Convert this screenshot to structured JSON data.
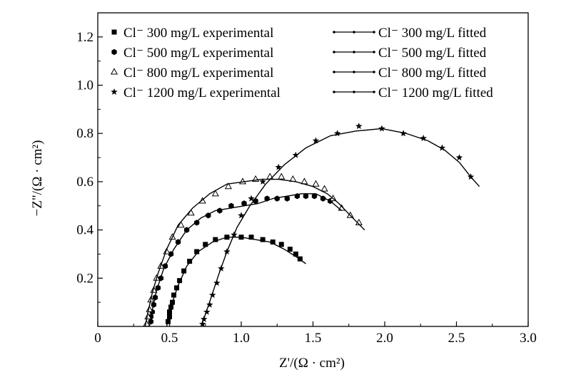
{
  "chart_data": {
    "type": "scatter",
    "xlabel": "Z'/(Ω · cm²)",
    "ylabel": "−Z\"/(Ω · cm²)",
    "xlim": [
      0,
      3.0
    ],
    "ylim": [
      0,
      1.3
    ],
    "xticks": [
      {
        "value": 0,
        "label": "0"
      },
      {
        "value": 0.5,
        "label": "0.5"
      },
      {
        "value": 1.0,
        "label": "1.0"
      },
      {
        "value": 1.5,
        "label": "1.5"
      },
      {
        "value": 2.0,
        "label": "2.0"
      },
      {
        "value": 2.5,
        "label": "2.5"
      },
      {
        "value": 3.0,
        "label": "3.0"
      }
    ],
    "yticks": [
      {
        "value": 0.2,
        "label": "0.2"
      },
      {
        "value": 0.4,
        "label": "0.4"
      },
      {
        "value": 0.6,
        "label": "0.6"
      },
      {
        "value": 0.8,
        "label": "0.8"
      },
      {
        "value": 1.0,
        "label": "1.0"
      },
      {
        "value": 1.2,
        "label": "1.2"
      }
    ],
    "grid": false,
    "legend_position": "top",
    "series": [
      {
        "name": "Cl⁻ 300 mg/L experimental",
        "marker": "square",
        "points": [
          [
            0.49,
            0.02
          ],
          [
            0.5,
            0.04
          ],
          [
            0.5,
            0.06
          ],
          [
            0.51,
            0.08
          ],
          [
            0.52,
            0.1
          ],
          [
            0.53,
            0.13
          ],
          [
            0.55,
            0.16
          ],
          [
            0.57,
            0.19
          ],
          [
            0.6,
            0.23
          ],
          [
            0.64,
            0.27
          ],
          [
            0.69,
            0.31
          ],
          [
            0.75,
            0.34
          ],
          [
            0.82,
            0.36
          ],
          [
            0.9,
            0.37
          ],
          [
            1.0,
            0.37
          ],
          [
            1.07,
            0.37
          ],
          [
            1.15,
            0.36
          ],
          [
            1.22,
            0.35
          ],
          [
            1.28,
            0.34
          ],
          [
            1.34,
            0.32
          ],
          [
            1.38,
            0.3
          ],
          [
            1.41,
            0.28
          ]
        ]
      },
      {
        "name": "Cl⁻ 500 mg/L experimental",
        "marker": "hexagon",
        "points": [
          [
            0.37,
            0.02
          ],
          [
            0.37,
            0.04
          ],
          [
            0.38,
            0.06
          ],
          [
            0.39,
            0.09
          ],
          [
            0.4,
            0.12
          ],
          [
            0.42,
            0.16
          ],
          [
            0.44,
            0.2
          ],
          [
            0.47,
            0.25
          ],
          [
            0.51,
            0.3
          ],
          [
            0.56,
            0.35
          ],
          [
            0.62,
            0.4
          ],
          [
            0.69,
            0.43
          ],
          [
            0.77,
            0.46
          ],
          [
            0.85,
            0.48
          ],
          [
            0.93,
            0.5
          ],
          [
            1.02,
            0.51
          ],
          [
            1.1,
            0.52
          ],
          [
            1.18,
            0.53
          ],
          [
            1.25,
            0.53
          ],
          [
            1.32,
            0.53
          ],
          [
            1.39,
            0.54
          ],
          [
            1.45,
            0.54
          ],
          [
            1.51,
            0.54
          ],
          [
            1.57,
            0.53
          ],
          [
            1.62,
            0.52
          ]
        ]
      },
      {
        "name": "Cl⁻ 800 mg/L experimental",
        "marker": "triangle",
        "points": [
          [
            0.34,
            0.01
          ],
          [
            0.35,
            0.04
          ],
          [
            0.36,
            0.07
          ],
          [
            0.37,
            0.11
          ],
          [
            0.39,
            0.15
          ],
          [
            0.41,
            0.2
          ],
          [
            0.44,
            0.25
          ],
          [
            0.48,
            0.31
          ],
          [
            0.52,
            0.37
          ],
          [
            0.58,
            0.42
          ],
          [
            0.65,
            0.47
          ],
          [
            0.73,
            0.52
          ],
          [
            0.82,
            0.55
          ],
          [
            0.91,
            0.58
          ],
          [
            1.01,
            0.6
          ],
          [
            1.1,
            0.61
          ],
          [
            1.2,
            0.62
          ],
          [
            1.28,
            0.62
          ],
          [
            1.36,
            0.61
          ],
          [
            1.44,
            0.6
          ],
          [
            1.52,
            0.59
          ],
          [
            1.58,
            0.57
          ],
          [
            1.64,
            0.53
          ],
          [
            1.7,
            0.49
          ],
          [
            1.76,
            0.46
          ],
          [
            1.82,
            0.43
          ]
        ]
      },
      {
        "name": "Cl⁻ 1200 mg/L experimental",
        "marker": "star",
        "points": [
          [
            0.73,
            0.01
          ],
          [
            0.74,
            0.03
          ],
          [
            0.76,
            0.06
          ],
          [
            0.78,
            0.09
          ],
          [
            0.8,
            0.13
          ],
          [
            0.83,
            0.18
          ],
          [
            0.86,
            0.24
          ],
          [
            0.9,
            0.31
          ],
          [
            0.95,
            0.38
          ],
          [
            1.0,
            0.46
          ],
          [
            1.07,
            0.53
          ],
          [
            1.15,
            0.6
          ],
          [
            1.26,
            0.66
          ],
          [
            1.38,
            0.71
          ],
          [
            1.52,
            0.77
          ],
          [
            1.67,
            0.8
          ],
          [
            1.82,
            0.83
          ],
          [
            1.98,
            0.82
          ],
          [
            2.13,
            0.8
          ],
          [
            2.27,
            0.78
          ],
          [
            2.4,
            0.74
          ],
          [
            2.52,
            0.7
          ],
          [
            2.6,
            0.62
          ]
        ]
      },
      {
        "name": "Cl⁻ 300 mg/L fitted",
        "marker": "line",
        "points": [
          [
            0.48,
            0.0
          ],
          [
            0.5,
            0.05
          ],
          [
            0.52,
            0.1
          ],
          [
            0.56,
            0.17
          ],
          [
            0.62,
            0.25
          ],
          [
            0.7,
            0.31
          ],
          [
            0.8,
            0.35
          ],
          [
            0.9,
            0.37
          ],
          [
            1.0,
            0.37
          ],
          [
            1.1,
            0.36
          ],
          [
            1.2,
            0.35
          ],
          [
            1.3,
            0.32
          ],
          [
            1.38,
            0.29
          ],
          [
            1.45,
            0.26
          ]
        ]
      },
      {
        "name": "Cl⁻ 500 mg/L fitted",
        "marker": "line",
        "points": [
          [
            0.36,
            0.0
          ],
          [
            0.38,
            0.07
          ],
          [
            0.41,
            0.15
          ],
          [
            0.46,
            0.24
          ],
          [
            0.53,
            0.32
          ],
          [
            0.62,
            0.4
          ],
          [
            0.72,
            0.45
          ],
          [
            0.82,
            0.48
          ],
          [
            0.92,
            0.49
          ],
          [
            1.02,
            0.5
          ],
          [
            1.12,
            0.51
          ],
          [
            1.22,
            0.53
          ],
          [
            1.32,
            0.54
          ],
          [
            1.42,
            0.55
          ],
          [
            1.52,
            0.55
          ],
          [
            1.62,
            0.52
          ],
          [
            1.7,
            0.48
          ]
        ]
      },
      {
        "name": "Cl⁻ 800 mg/L fitted",
        "marker": "line",
        "points": [
          [
            0.33,
            0.0
          ],
          [
            0.35,
            0.06
          ],
          [
            0.38,
            0.14
          ],
          [
            0.42,
            0.22
          ],
          [
            0.48,
            0.32
          ],
          [
            0.56,
            0.42
          ],
          [
            0.66,
            0.49
          ],
          [
            0.78,
            0.55
          ],
          [
            0.9,
            0.59
          ],
          [
            1.02,
            0.6
          ],
          [
            1.14,
            0.61
          ],
          [
            1.26,
            0.61
          ],
          [
            1.38,
            0.6
          ],
          [
            1.5,
            0.58
          ],
          [
            1.6,
            0.55
          ],
          [
            1.68,
            0.51
          ],
          [
            1.76,
            0.46
          ],
          [
            1.86,
            0.4
          ]
        ]
      },
      {
        "name": "Cl⁻ 1200 mg/L fitted",
        "marker": "line",
        "points": [
          [
            0.72,
            0.0
          ],
          [
            0.75,
            0.05
          ],
          [
            0.79,
            0.12
          ],
          [
            0.84,
            0.21
          ],
          [
            0.9,
            0.31
          ],
          [
            0.97,
            0.41
          ],
          [
            1.06,
            0.5
          ],
          [
            1.17,
            0.59
          ],
          [
            1.3,
            0.67
          ],
          [
            1.45,
            0.74
          ],
          [
            1.62,
            0.79
          ],
          [
            1.8,
            0.81
          ],
          [
            1.98,
            0.82
          ],
          [
            2.15,
            0.8
          ],
          [
            2.3,
            0.77
          ],
          [
            2.42,
            0.73
          ],
          [
            2.52,
            0.68
          ],
          [
            2.6,
            0.62
          ],
          [
            2.66,
            0.58
          ]
        ]
      }
    ]
  }
}
